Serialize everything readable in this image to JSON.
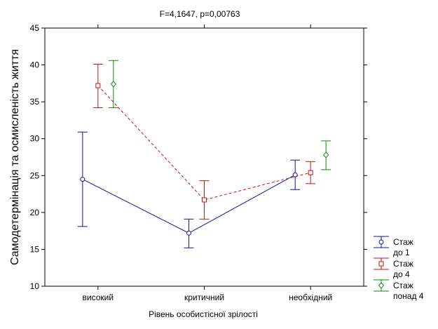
{
  "chart_data": {
    "type": "line",
    "title": "F=4,1647, p=0,00763",
    "xlabel": "Рівень особистісної зрілості",
    "ylabel": "Самодетермінація та осмисленість життя",
    "categories": [
      "високий",
      "критичний",
      "необхідний"
    ],
    "ylim": [
      10,
      45
    ],
    "yticks": [
      10,
      15,
      20,
      25,
      30,
      35,
      40,
      45
    ],
    "grid": false,
    "legend_position": "bottom-right",
    "series": [
      {
        "name_lines": [
          "Стаж",
          "до 1"
        ],
        "color": "#1010a8",
        "dash": "solid",
        "marker": "circle",
        "values": [
          24.5,
          17.2,
          25.1
        ],
        "lower": [
          18.1,
          15.2,
          23.1
        ],
        "upper": [
          30.9,
          19.1,
          27.1
        ]
      },
      {
        "name_lines": [
          "Стаж",
          "до 4"
        ],
        "color": "#cc1010",
        "dash": "dashed",
        "marker": "square",
        "values": [
          37.2,
          21.7,
          25.4
        ],
        "lower": [
          34.2,
          19.1,
          23.9
        ],
        "upper": [
          40.1,
          24.3,
          26.9
        ]
      },
      {
        "name_lines": [
          "Стаж",
          "понад 4"
        ],
        "color": "#108810",
        "dash": "none",
        "marker": "diamond",
        "values": [
          37.4,
          null,
          27.8
        ],
        "lower": [
          34.2,
          null,
          25.8
        ],
        "upper": [
          40.6,
          null,
          29.7
        ]
      }
    ]
  }
}
